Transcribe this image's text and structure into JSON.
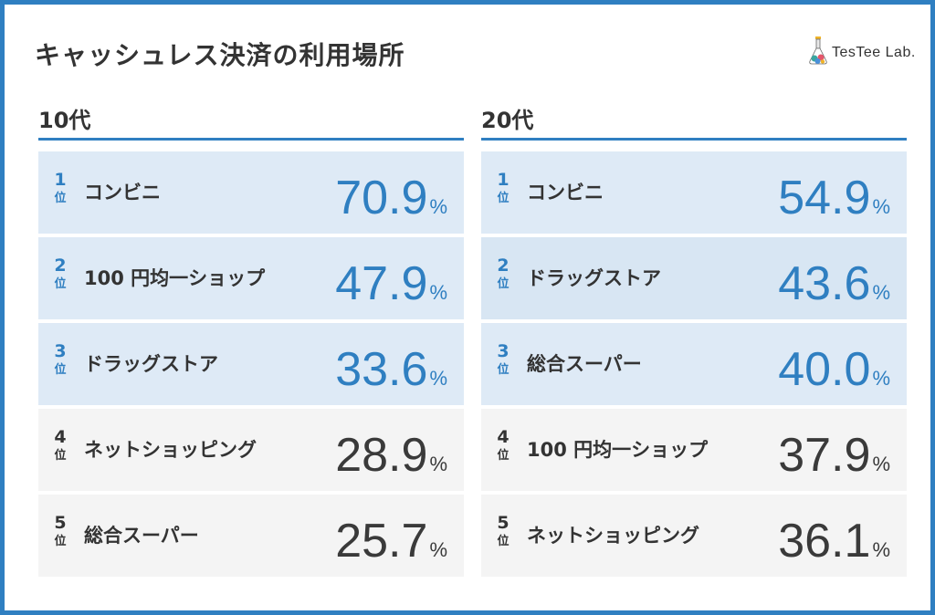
{
  "title": "キャッシュレス決済の利用場所",
  "logo": {
    "text": "TesTee Lab.",
    "icon": "flask-logo-icon"
  },
  "rank_suffix": "位",
  "percent_sign": "%",
  "colors": {
    "frame": "#2f7fc1",
    "accent": "#2f7fc1",
    "top_row_bg": "#deeaf6",
    "rest_row_bg": "#f4f4f4",
    "text": "#333333"
  },
  "columns": [
    {
      "header": "10代",
      "rows": [
        {
          "rank": "1",
          "label": "コンビニ",
          "value": "70.9"
        },
        {
          "rank": "2",
          "label": "100 円均一ショップ",
          "value": "47.9"
        },
        {
          "rank": "3",
          "label": "ドラッグストア",
          "value": "33.6"
        },
        {
          "rank": "4",
          "label": "ネットショッピング",
          "value": "28.9"
        },
        {
          "rank": "5",
          "label": "総合スーパー",
          "value": "25.7"
        }
      ]
    },
    {
      "header": "20代",
      "rows": [
        {
          "rank": "1",
          "label": "コンビニ",
          "value": "54.9"
        },
        {
          "rank": "2",
          "label": "ドラッグストア",
          "value": "43.6"
        },
        {
          "rank": "3",
          "label": "総合スーパー",
          "value": "40.0"
        },
        {
          "rank": "4",
          "label": "100 円均一ショップ",
          "value": "37.9"
        },
        {
          "rank": "5",
          "label": "ネットショッピング",
          "value": "36.1"
        }
      ]
    }
  ]
}
